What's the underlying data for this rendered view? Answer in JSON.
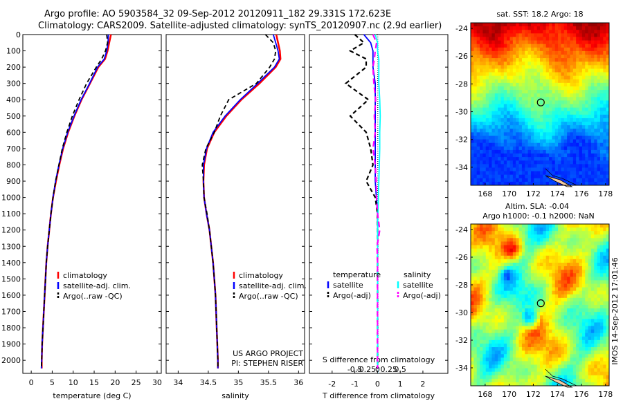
{
  "header": {
    "line1": "Argo profile: AO 5903584_32 09-Sep-2012 20120911_182 29.331S 172.623E",
    "line2": "Climatology: CARS2009. Satellite-adjusted climatology: synTS_20120907.nc (2.9d earlier)"
  },
  "credits": {
    "project": "US ARGO PROJECT",
    "pi": "PI: STEPHEN RISER",
    "watermark": "IMOS 14-Sep-2012 17:01:46"
  },
  "colors": {
    "climatology": "#ff0000",
    "satellite": "#0000ff",
    "argo": "#000000",
    "sal_satellite": "#00ffff",
    "sal_argo": "#ff00ff"
  },
  "chart_data": [
    {
      "type": "line",
      "id": "temperature",
      "xlabel": "temperature (deg C)",
      "ylabel": "",
      "xlim": [
        -2,
        31
      ],
      "ylim": [
        2080,
        0
      ],
      "xticks": [
        0,
        5,
        10,
        15,
        20,
        25,
        30
      ],
      "yticks": [
        0,
        100,
        200,
        300,
        400,
        500,
        600,
        700,
        800,
        900,
        1000,
        1100,
        1200,
        1300,
        1400,
        1500,
        1600,
        1700,
        1800,
        1900,
        2000
      ],
      "legend": [
        "climatology",
        "satellite-adj. clim.",
        "Argo(..raw -QC)"
      ],
      "legend_position": "lower-middle",
      "depth": [
        0,
        50,
        100,
        150,
        200,
        300,
        400,
        500,
        600,
        700,
        800,
        900,
        1000,
        1100,
        1200,
        1300,
        1400,
        1500,
        1600,
        1700,
        1800,
        1900,
        2000,
        2050
      ],
      "series": [
        {
          "name": "climatology",
          "values": [
            19,
            18.6,
            18.2,
            17.6,
            16.0,
            14.0,
            12.0,
            10.3,
            8.8,
            7.6,
            6.7,
            5.9,
            5.2,
            4.7,
            4.3,
            3.9,
            3.6,
            3.4,
            3.2,
            3.0,
            2.8,
            2.6,
            2.5,
            2.5
          ]
        },
        {
          "name": "satellite-adj. clim.",
          "values": [
            18.4,
            18.3,
            18.0,
            17.4,
            15.8,
            13.9,
            11.9,
            10.2,
            8.7,
            7.5,
            6.6,
            5.8,
            5.2,
            4.7,
            4.3,
            3.9,
            3.6,
            3.4,
            3.2,
            3.0,
            2.8,
            2.6,
            2.5,
            2.4
          ]
        },
        {
          "name": "Argo(..raw -QC)",
          "values": [
            18.0,
            18.2,
            17.7,
            16.8,
            15.5,
            13.2,
            11.4,
            9.8,
            8.5,
            7.4,
            6.6,
            5.8,
            5.2,
            4.7,
            4.3,
            3.9,
            3.6,
            3.4,
            3.2,
            3.0,
            2.8,
            2.6,
            2.5,
            2.4
          ]
        }
      ]
    },
    {
      "type": "line",
      "id": "salinity",
      "xlabel": "salinity",
      "ylabel": "",
      "xlim": [
        33.8,
        36.1
      ],
      "ylim": [
        2080,
        0
      ],
      "xticks": [
        34,
        34.5,
        35,
        35.5,
        36
      ],
      "legend": [
        "climatology",
        "satellite-adj. clim.",
        "Argo(..raw -QC)"
      ],
      "legend_position": "lower-middle",
      "depth": [
        0,
        50,
        100,
        150,
        200,
        300,
        400,
        500,
        600,
        700,
        800,
        900,
        1000,
        1100,
        1200,
        1300,
        1400,
        1500,
        1600,
        1700,
        1800,
        1900,
        2000,
        2050
      ],
      "series": [
        {
          "name": "climatology",
          "values": [
            35.63,
            35.66,
            35.69,
            35.7,
            35.62,
            35.35,
            35.05,
            34.8,
            34.6,
            34.48,
            34.43,
            34.42,
            34.43,
            34.47,
            34.52,
            34.55,
            34.58,
            34.6,
            34.62,
            34.63,
            34.64,
            34.65,
            34.66,
            34.66
          ]
        },
        {
          "name": "satellite-adj. clim.",
          "values": [
            35.58,
            35.62,
            35.66,
            35.68,
            35.6,
            35.32,
            35.03,
            34.78,
            34.58,
            34.47,
            34.42,
            34.42,
            34.43,
            34.47,
            34.52,
            34.55,
            34.58,
            34.6,
            34.62,
            34.63,
            34.64,
            34.65,
            34.66,
            34.66
          ]
        },
        {
          "name": "Argo(..raw -QC)",
          "values": [
            35.45,
            35.58,
            35.62,
            35.6,
            35.52,
            35.3,
            34.84,
            34.7,
            34.6,
            34.46,
            34.4,
            34.42,
            34.43,
            34.48,
            34.52,
            34.55,
            34.58,
            34.6,
            34.62,
            34.63,
            34.64,
            34.65,
            34.66,
            34.66
          ]
        }
      ]
    },
    {
      "type": "line",
      "id": "difference",
      "xlabel": "T difference from climatology",
      "xlabel_top": "S difference from climatology",
      "xlim": [
        -3,
        3.1
      ],
      "ylim": [
        2080,
        0
      ],
      "xticks": [
        -2,
        -1,
        0,
        1,
        2
      ],
      "xticks_salinity": [
        -0.5,
        -0.25,
        0,
        0.25,
        0.5
      ],
      "legend_headers": [
        "temperature",
        "salinity"
      ],
      "legend": [
        "satellite",
        "Argo(-adj)",
        "satellite",
        "Argo(-adj)"
      ],
      "depth": [
        0,
        50,
        100,
        150,
        200,
        300,
        400,
        500,
        600,
        700,
        800,
        900,
        1000,
        1100,
        1200,
        1300,
        1400,
        1500,
        1600,
        1700,
        1800,
        1900,
        2000,
        2050
      ],
      "series": [
        {
          "name": "satellite",
          "variable": "temperature",
          "values": [
            -0.6,
            -0.3,
            -0.2,
            -0.2,
            -0.2,
            -0.1,
            -0.1,
            -0.1,
            -0.1,
            -0.1,
            -0.1,
            -0.1,
            -0.05,
            0,
            0,
            0,
            0,
            0,
            0,
            0,
            0,
            0,
            0,
            0
          ]
        },
        {
          "name": "Argo(-adj)",
          "variable": "temperature",
          "values": [
            -1,
            -0.6,
            -1.2,
            -0.5,
            -0.5,
            -1.4,
            -0.4,
            -1.2,
            -0.5,
            -0.3,
            -0.2,
            -0.5,
            -0.1,
            0,
            0,
            0,
            0,
            0,
            0,
            0,
            0,
            0,
            0,
            0
          ]
        },
        {
          "name": "satellite",
          "variable": "salinity",
          "values": [
            -0.05,
            0,
            0,
            0.03,
            0.03,
            0.03,
            0.05,
            0.06,
            0.05,
            0.05,
            0.04,
            0.03,
            0.02,
            0.01,
            0,
            0,
            0,
            0,
            0,
            0,
            0,
            0,
            0,
            0
          ]
        },
        {
          "name": "Argo(-adj)",
          "variable": "salinity",
          "values": [
            -0.1,
            -0.02,
            -0.05,
            -0.07,
            -0.1,
            -0.08,
            -0.04,
            -0.07,
            -0.05,
            -0.1,
            -0.05,
            -0.03,
            -0.02,
            0,
            0.05,
            -0.01,
            0,
            0,
            0,
            0,
            0,
            0,
            0,
            0
          ]
        }
      ]
    },
    {
      "type": "heatmap",
      "id": "sst_map",
      "title": "sat. SST: 18.2 Argo: 18",
      "xlim": [
        166.8,
        178.3
      ],
      "ylim": [
        -35.3,
        -23.6
      ],
      "xticks": [
        168,
        170,
        172,
        174,
        176,
        178
      ],
      "yticks": [
        -24,
        -26,
        -28,
        -30,
        -32,
        -34
      ],
      "profile_marker": {
        "lon": 172.623,
        "lat": -29.331
      }
    },
    {
      "type": "heatmap",
      "id": "sla_map",
      "title": "Altim. SLA: -0.04",
      "subtitle": "Argo h1000: -0.1 h2000: NaN",
      "xlim": [
        166.8,
        178.3
      ],
      "ylim": [
        -35.3,
        -23.6
      ],
      "xticks": [
        168,
        170,
        172,
        174,
        176,
        178
      ],
      "yticks": [
        -24,
        -26,
        -28,
        -30,
        -32,
        -34
      ],
      "profile_marker": {
        "lon": 172.623,
        "lat": -29.331
      }
    }
  ]
}
